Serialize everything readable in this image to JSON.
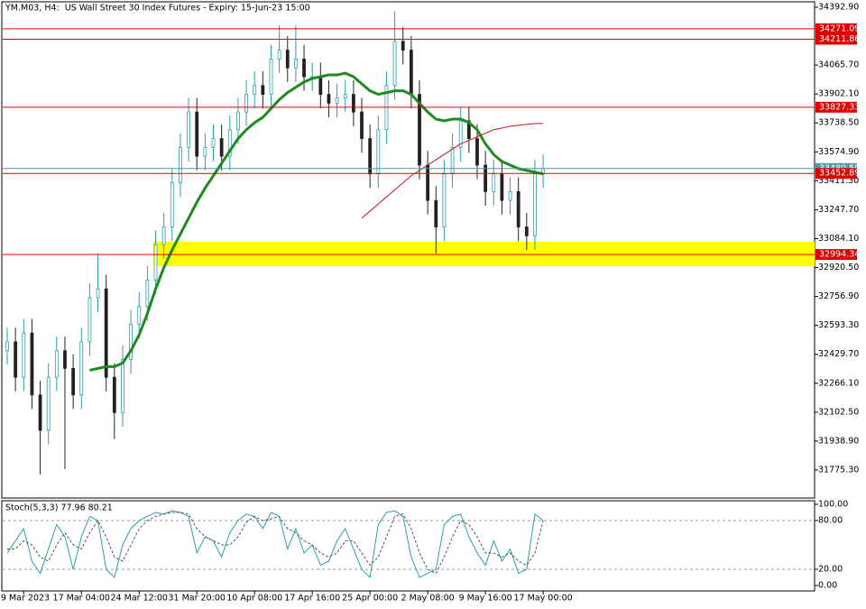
{
  "chart_data": [
    {
      "type": "candlestick",
      "title": "YM.M03, H4:  US Wall Street 30 Index Futures - Expiry: 15-Jun-23 15:00",
      "categories": [
        null,
        null,
        "9 Mar 2023",
        null,
        null,
        null,
        null,
        null,
        null,
        "17 Mar 04:00",
        null,
        null,
        null,
        null,
        null,
        null,
        "24 Mar 12:00",
        null,
        null,
        null,
        null,
        null,
        null,
        "31 Mar 20:00",
        null,
        null,
        null,
        null,
        null,
        null,
        "10 Apr 08:00",
        null,
        null,
        null,
        null,
        null,
        null,
        "17 Apr 16:00",
        null,
        null,
        null,
        null,
        null,
        null,
        "25 Apr 00:00",
        null,
        null,
        null,
        null,
        null,
        null,
        "2 May 08:00",
        null,
        null,
        null,
        null,
        null,
        null,
        "9 May 16:00",
        null,
        null,
        null,
        null,
        null,
        null,
        "17 May 00:00"
      ],
      "open": [
        32450,
        32500,
        32300,
        32550,
        32200,
        32000,
        32300,
        32450,
        32350,
        32200,
        32500,
        32750,
        32800,
        32300,
        32100,
        32400,
        32600,
        32700,
        32850,
        33050,
        33150,
        33400,
        33600,
        33800,
        33550,
        33600,
        33650,
        33550,
        33700,
        33800,
        33900,
        33950,
        33900,
        34100,
        34150,
        34050,
        34100,
        34000,
        34000,
        33900,
        33850,
        33880,
        33900,
        33800,
        33650,
        33450,
        33700,
        33950,
        34200,
        34150,
        33900,
        33500,
        33300,
        33150,
        33450,
        33600,
        33750,
        33650,
        33500,
        33350,
        33450,
        33300,
        33350,
        33150,
        33100,
        33450
      ],
      "high": [
        32580,
        32580,
        32630,
        32630,
        32280,
        32380,
        32530,
        32530,
        32430,
        32580,
        32830,
        33000,
        32880,
        32380,
        32480,
        32680,
        32780,
        32930,
        33130,
        33230,
        33480,
        33680,
        33880,
        33880,
        33680,
        33730,
        33730,
        33780,
        33880,
        33980,
        34030,
        34030,
        34180,
        34290,
        34230,
        34290,
        34180,
        34080,
        34080,
        33980,
        33960,
        33980,
        33980,
        33880,
        33730,
        33780,
        34030,
        34370,
        34280,
        34230,
        33980,
        33580,
        33380,
        33530,
        33680,
        33830,
        33830,
        33730,
        33580,
        33530,
        33530,
        33430,
        33430,
        33230,
        33530,
        33560
      ],
      "low": [
        32370,
        32220,
        32220,
        32120,
        31750,
        31920,
        32220,
        31780,
        32120,
        32120,
        32420,
        32670,
        32220,
        31950,
        32020,
        32320,
        32520,
        32620,
        32770,
        32970,
        33070,
        33320,
        33520,
        33470,
        33470,
        33520,
        33470,
        33470,
        33620,
        33720,
        33820,
        33820,
        33820,
        34020,
        33970,
        33970,
        33920,
        33920,
        33820,
        33770,
        33770,
        33800,
        33720,
        33570,
        33370,
        33370,
        33620,
        33870,
        34070,
        33820,
        33420,
        33220,
        33000,
        33070,
        33370,
        33520,
        33570,
        33420,
        33270,
        33270,
        33220,
        33220,
        33070,
        33020,
        33020,
        33370
      ],
      "close": [
        32500,
        32300,
        32550,
        32200,
        32000,
        32300,
        32450,
        32350,
        32200,
        32500,
        32750,
        32800,
        32300,
        32100,
        32400,
        32600,
        32700,
        32850,
        33050,
        33150,
        33400,
        33600,
        33800,
        33550,
        33600,
        33650,
        33550,
        33700,
        33800,
        33900,
        33950,
        33900,
        34100,
        34150,
        34050,
        34100,
        34000,
        34000,
        33900,
        33850,
        33880,
        33900,
        33800,
        33650,
        33450,
        33700,
        33950,
        34200,
        34150,
        33900,
        33500,
        33300,
        33150,
        33450,
        33600,
        33750,
        33650,
        33500,
        33350,
        33450,
        33300,
        33350,
        33150,
        33100,
        33450,
        33480
      ],
      "up_color": "#2a9fb0",
      "down_color": "#222222",
      "series": [
        {
          "color": "#1f8a1f",
          "values": [
            null,
            null,
            null,
            null,
            null,
            null,
            null,
            null,
            null,
            null,
            32340,
            32350,
            32360,
            32360,
            32380,
            32450,
            32540,
            32660,
            32800,
            32920,
            33020,
            33110,
            33200,
            33290,
            33370,
            33440,
            33510,
            33580,
            33650,
            33700,
            33740,
            33770,
            33820,
            33870,
            33910,
            33940,
            33970,
            33990,
            34000,
            34010,
            34010,
            34020,
            34000,
            33960,
            33920,
            33900,
            33910,
            33920,
            33920,
            33900,
            33850,
            33800,
            33760,
            33750,
            33760,
            33760,
            33740,
            33700,
            33620,
            33560,
            33520,
            33500,
            33480,
            33470,
            33460,
            33450
          ]
        },
        {
          "color": "#cc1111",
          "values": [
            null,
            null,
            null,
            null,
            null,
            null,
            null,
            null,
            null,
            null,
            null,
            null,
            null,
            null,
            null,
            null,
            null,
            null,
            null,
            null,
            null,
            null,
            null,
            null,
            null,
            null,
            null,
            null,
            null,
            null,
            null,
            null,
            null,
            null,
            null,
            null,
            null,
            null,
            null,
            null,
            null,
            null,
            null,
            33200,
            33240,
            33280,
            33320,
            33360,
            33400,
            33440,
            33470,
            33500,
            33530,
            33560,
            33590,
            33620,
            33640,
            33660,
            33680,
            33700,
            33710,
            33720,
            33725,
            33730,
            33735,
            33735
          ]
        }
      ],
      "levels": [
        34271.09,
        34211.86,
        33827.33,
        33452.89,
        32994.34
      ],
      "level_color": "#e00000",
      "price_line": 33480.59,
      "price_line_color": "#4f9aa8",
      "zone": [
        32928,
        33066
      ],
      "zone_color": "#ffff00",
      "ylim": [
        31617,
        34423.5
      ],
      "yticks": [
        {
          "value": 34392.9,
          "label": "34392.90"
        },
        {
          "value": 34065.7,
          "label": "34065.70"
        },
        {
          "value": 33902.1,
          "label": "33902.10"
        },
        {
          "value": 33738.5,
          "label": "33738.50"
        },
        {
          "value": 33574.9,
          "label": "33574.90"
        },
        {
          "value": 33411.3,
          "label": "33411.30"
        },
        {
          "value": 33247.7,
          "label": "33247.70"
        },
        {
          "value": 33084.1,
          "label": "33084.10"
        },
        {
          "value": 32920.5,
          "label": "32920.50"
        },
        {
          "value": 32756.9,
          "label": "32756.90"
        },
        {
          "value": 32593.3,
          "label": "32593.30"
        },
        {
          "value": 32429.7,
          "label": "32429.70"
        },
        {
          "value": 32266.1,
          "label": "32266.10"
        },
        {
          "value": 32102.5,
          "label": "32102.50"
        },
        {
          "value": 31938.9,
          "label": "31938.90"
        },
        {
          "value": 31775.3,
          "label": "31775.30"
        }
      ]
    },
    {
      "type": "line",
      "title": "Stoch(5,3,3) 77.96 80.21",
      "series": [
        {
          "color": "#2a9fb0",
          "dash": false,
          "values": [
            40,
            55,
            70,
            30,
            15,
            45,
            75,
            60,
            20,
            60,
            85,
            80,
            20,
            10,
            50,
            70,
            80,
            85,
            90,
            88,
            92,
            90,
            85,
            40,
            60,
            55,
            35,
            65,
            80,
            88,
            85,
            70,
            90,
            85,
            45,
            70,
            40,
            50,
            25,
            30,
            55,
            70,
            45,
            20,
            10,
            75,
            90,
            92,
            85,
            35,
            10,
            15,
            20,
            75,
            85,
            88,
            60,
            40,
            25,
            55,
            30,
            45,
            15,
            20,
            88,
            80
          ]
        },
        {
          "color": "#555555",
          "dash": true,
          "values": [
            45,
            45,
            55,
            50,
            35,
            30,
            50,
            65,
            50,
            45,
            65,
            80,
            60,
            35,
            30,
            50,
            70,
            80,
            85,
            88,
            90,
            90,
            88,
            70,
            60,
            55,
            50,
            50,
            60,
            78,
            85,
            80,
            82,
            85,
            70,
            65,
            55,
            50,
            40,
            35,
            40,
            55,
            55,
            40,
            25,
            35,
            60,
            85,
            88,
            70,
            40,
            20,
            15,
            35,
            60,
            80,
            75,
            60,
            40,
            40,
            35,
            40,
            30,
            25,
            40,
            80
          ]
        }
      ],
      "levels": [
        80,
        20
      ],
      "ylim": [
        -6.7,
        104.4
      ],
      "yticks": [
        {
          "value": 100,
          "label": "100.00"
        },
        {
          "value": 80,
          "label": "80.00"
        },
        {
          "value": 20,
          "label": "20.00"
        },
        {
          "value": 0,
          "label": "0.00"
        }
      ]
    }
  ]
}
